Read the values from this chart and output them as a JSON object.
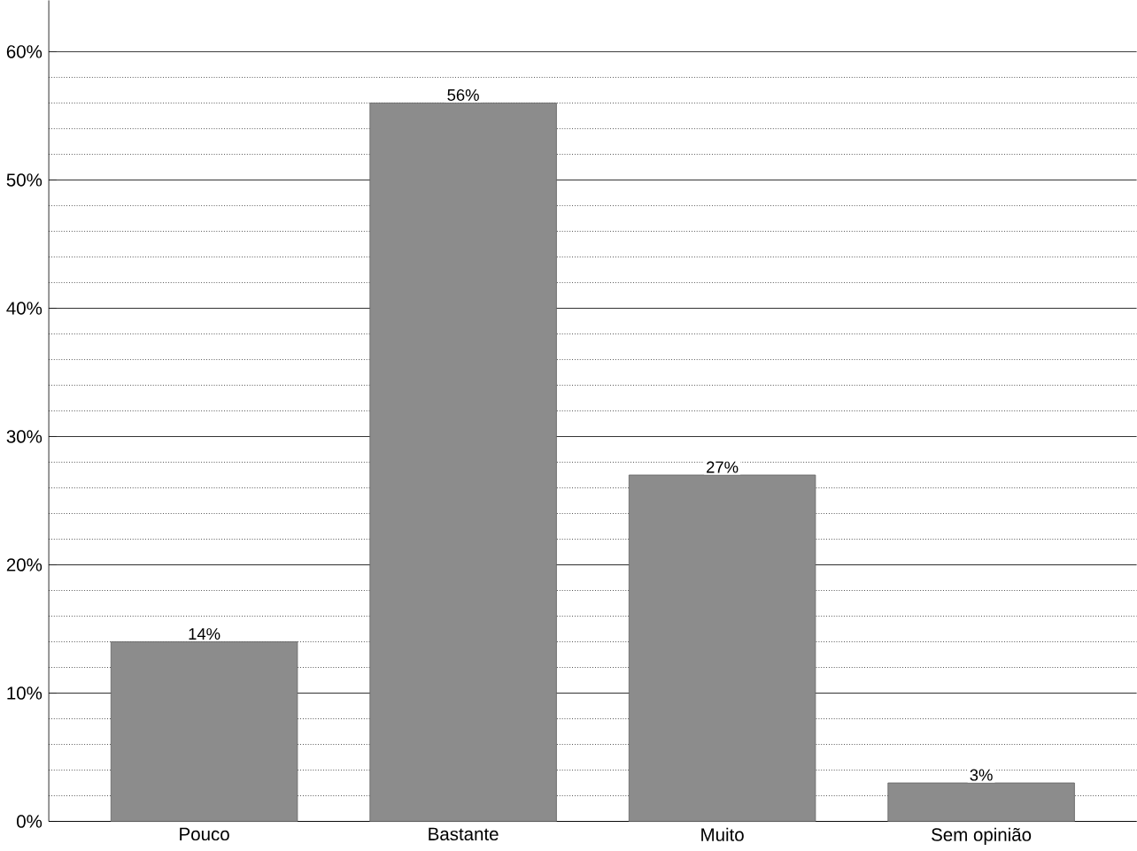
{
  "chart_data": {
    "type": "bar",
    "categories": [
      "Pouco",
      "Bastante",
      "Muito",
      "Sem opinião"
    ],
    "values": [
      14,
      56,
      27,
      3
    ],
    "value_labels": [
      "14%",
      "56%",
      "27%",
      "3%"
    ],
    "color": "#8c8c8c",
    "grid": "y",
    "ylim": [
      0,
      64
    ],
    "yticks": [
      {
        "value": 0,
        "label": "0%"
      },
      {
        "value": 10,
        "label": "10%"
      },
      {
        "value": 20,
        "label": "20%"
      },
      {
        "value": 30,
        "label": "30%"
      },
      {
        "value": 40,
        "label": "40%"
      },
      {
        "value": 50,
        "label": "50%"
      },
      {
        "value": 60,
        "label": "60%"
      }
    ]
  }
}
